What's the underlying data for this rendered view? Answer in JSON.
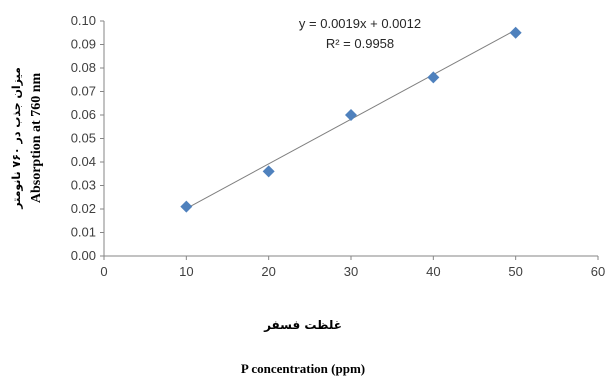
{
  "chart_data": {
    "type": "scatter",
    "x": [
      10,
      20,
      30,
      40,
      50
    ],
    "y": [
      0.021,
      0.036,
      0.06,
      0.076,
      0.095
    ],
    "xlim": [
      0,
      60
    ],
    "ylim": [
      0,
      0.1
    ],
    "x_ticks": [
      "0",
      "10",
      "20",
      "30",
      "40",
      "50",
      "60"
    ],
    "y_ticks": [
      "0.00",
      "0.01",
      "0.02",
      "0.03",
      "0.04",
      "0.05",
      "0.06",
      "0.07",
      "0.08",
      "0.09",
      "0.10"
    ],
    "trendline": {
      "slope": 0.0019,
      "intercept": 0.0012,
      "x_range": [
        10,
        50
      ]
    },
    "equation": "y = 0.0019x + 0.0012",
    "r_squared": "R² = 0.9958",
    "ylabel_fa": "میزان جذب در ۷۶۰ نانومتر",
    "ylabel_en": "Absorption at 760 nm",
    "xlabel_fa": "غلظت فسفر",
    "xlabel_en": "P concentration (ppm)",
    "marker_color": "#4f81bd",
    "line_color": "#7f7f7f",
    "grid": false
  }
}
